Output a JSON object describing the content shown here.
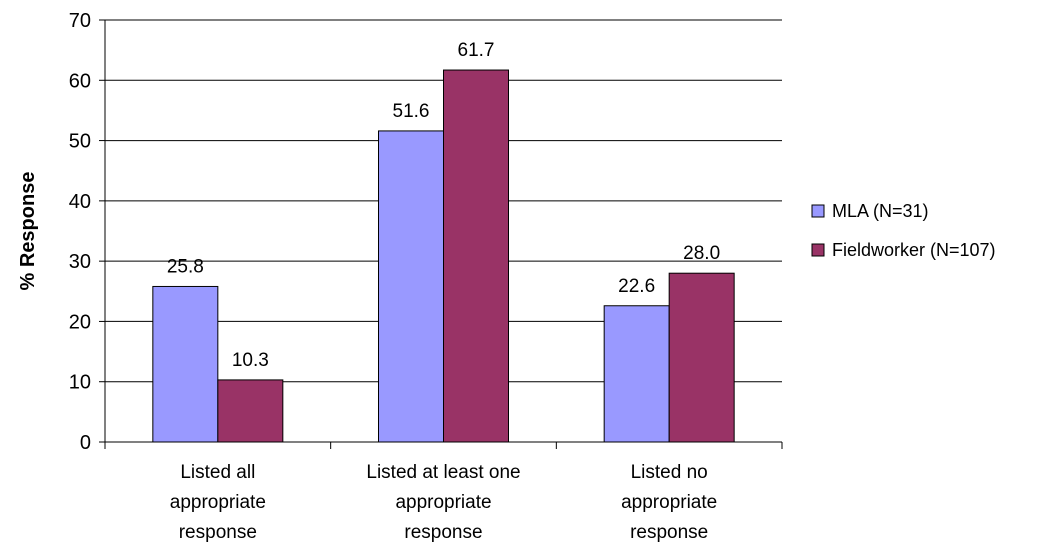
{
  "chart_data": {
    "type": "bar",
    "categories": [
      [
        "Listed all",
        "appropriate",
        "response"
      ],
      [
        "Listed at least one",
        "appropriate",
        "response"
      ],
      [
        "Listed no",
        "appropriate",
        "response"
      ]
    ],
    "series": [
      {
        "name": "MLA (N=31)",
        "values": [
          25.8,
          51.6,
          22.6
        ],
        "labels": [
          "25.8",
          "51.6",
          "22.6"
        ],
        "color": "#9999FF"
      },
      {
        "name": "Fieldworker (N=107)",
        "values": [
          10.3,
          61.7,
          28.0
        ],
        "labels": [
          "10.3",
          "61.7",
          "28.0"
        ],
        "color": "#993366"
      }
    ],
    "ylabel": "% Response",
    "xlabel": "",
    "ylim": [
      0,
      70
    ],
    "yticks": [
      0,
      10,
      20,
      30,
      40,
      50,
      60,
      70
    ],
    "grid": true,
    "legend_position": "right"
  }
}
